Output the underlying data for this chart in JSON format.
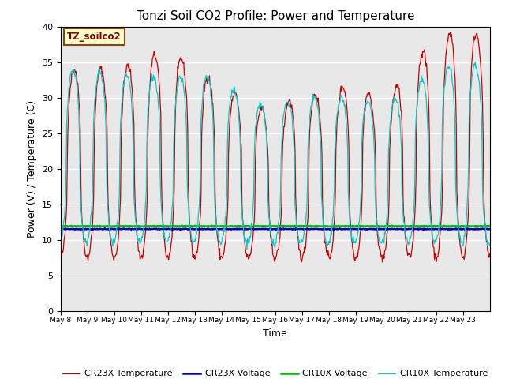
{
  "title": "Tonzi Soil CO2 Profile: Power and Temperature",
  "xlabel": "Time",
  "ylabel": "Power (V) / Temperature (C)",
  "ylim": [
    0,
    40
  ],
  "yticks": [
    0,
    5,
    10,
    15,
    20,
    25,
    30,
    35,
    40
  ],
  "background_color": "#e8e8e8",
  "figure_bg": "#ffffff",
  "annotation_text": "TZ_soilco2",
  "annotation_bg": "#ffffcc",
  "annotation_border": "#8B4513",
  "legend_entries": [
    "CR23X Temperature",
    "CR23X Voltage",
    "CR10X Voltage",
    "CR10X Temperature"
  ],
  "legend_colors": [
    "#cc0000",
    "#0000cc",
    "#00bb00",
    "#00cccc"
  ],
  "cr23x_voltage_value": 11.5,
  "cr10x_voltage_value": 11.9,
  "x_tick_labels": [
    "May 8",
    "May 9",
    "May 10",
    "May 11",
    "May 12",
    "May 13",
    "May 14",
    "May 15",
    "May 16",
    "May 17",
    "May 18",
    "May 19",
    "May 20",
    "May 21",
    "May 22",
    "May 23"
  ]
}
